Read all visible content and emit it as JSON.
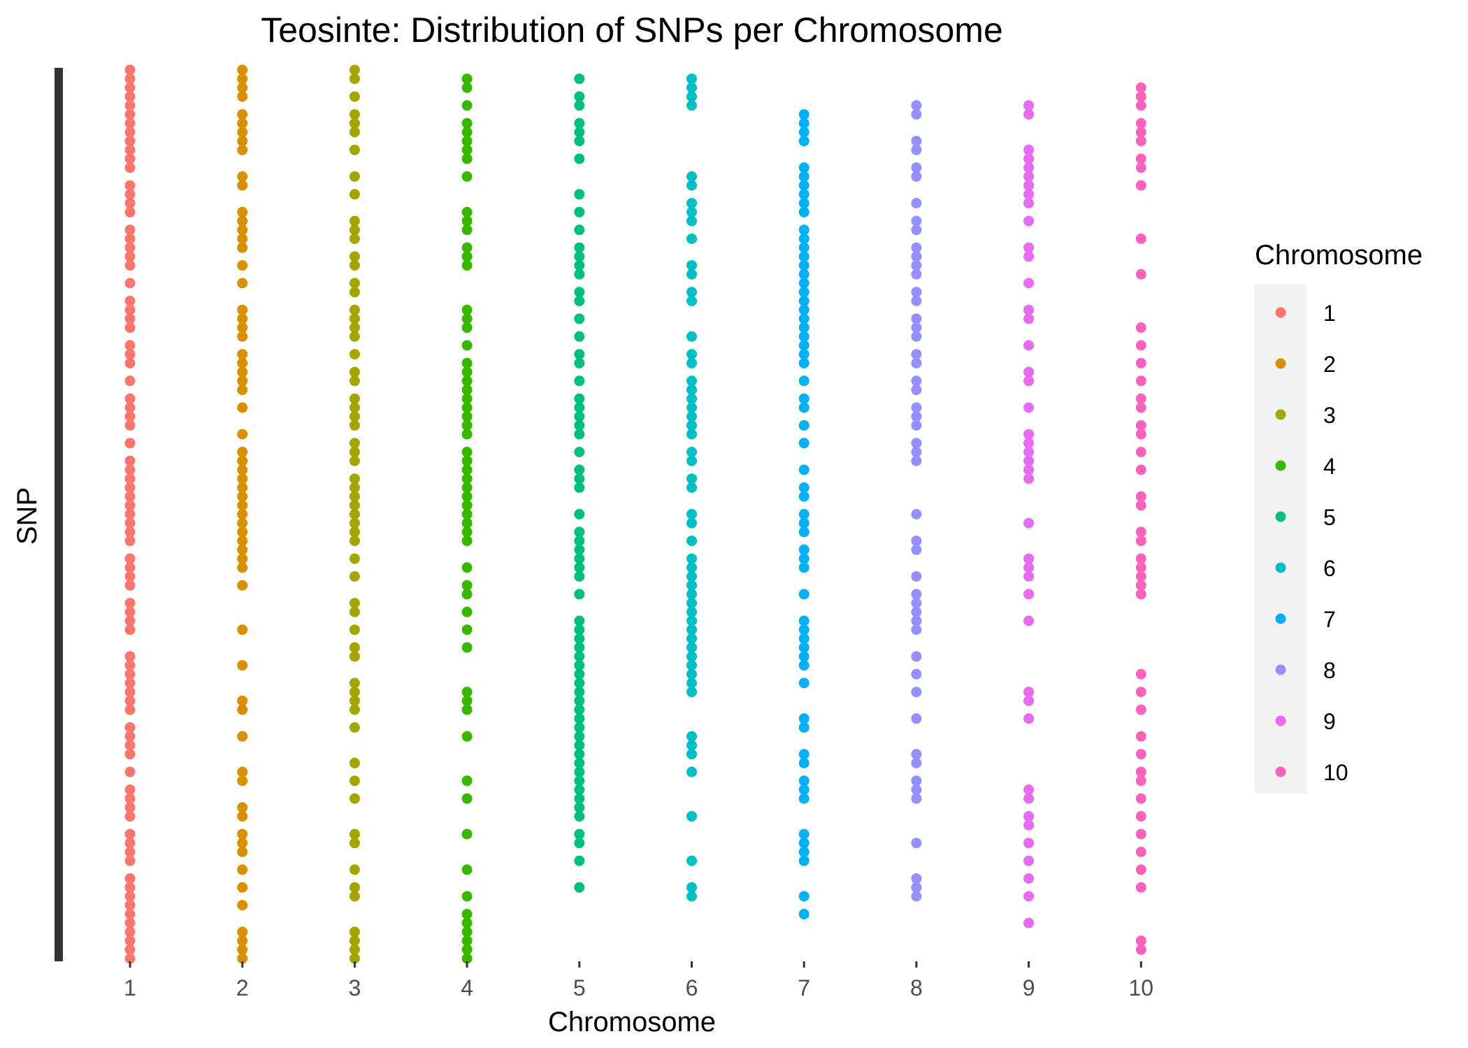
{
  "chart_data": {
    "type": "scatter",
    "title": "Teosinte: Distribution of SNPs per Chromosome",
    "xlabel": "Chromosome",
    "ylabel": "SNP",
    "categories": [
      "1",
      "2",
      "3",
      "4",
      "5",
      "6",
      "7",
      "8",
      "9",
      "10"
    ],
    "y_axis": "categorical (SNP identifiers), no tick labels shown",
    "grid": false,
    "legend": {
      "title": "Chromosome",
      "position": "right",
      "labels": [
        "1",
        "2",
        "3",
        "4",
        "5",
        "6",
        "7",
        "8",
        "9",
        "10"
      ]
    },
    "series": [
      {
        "category": "1",
        "color": "#F8766D",
        "y": [
          0.0,
          0.01,
          0.02,
          0.03,
          0.04,
          0.05,
          0.06,
          0.07,
          0.08,
          0.09,
          0.1,
          0.11,
          0.13,
          0.14,
          0.15,
          0.16,
          0.18,
          0.19,
          0.2,
          0.21,
          0.22,
          0.24,
          0.26,
          0.27,
          0.28,
          0.29,
          0.31,
          0.32,
          0.33,
          0.35,
          0.37,
          0.38,
          0.39,
          0.4,
          0.42,
          0.44,
          0.45,
          0.46,
          0.47,
          0.48,
          0.49,
          0.5,
          0.51,
          0.52,
          0.53,
          0.55,
          0.56,
          0.57,
          0.58,
          0.6,
          0.61,
          0.62,
          0.63,
          0.66,
          0.67,
          0.68,
          0.69,
          0.7,
          0.71,
          0.72,
          0.74,
          0.75,
          0.76,
          0.77,
          0.79,
          0.81,
          0.82,
          0.83,
          0.84,
          0.86,
          0.87,
          0.88,
          0.89,
          0.91,
          0.92,
          0.93,
          0.94,
          0.95,
          0.96,
          0.97,
          0.98,
          0.99,
          1.0
        ]
      },
      {
        "category": "2",
        "color": "#D89000",
        "y": [
          0.0,
          0.01,
          0.02,
          0.03,
          0.05,
          0.06,
          0.07,
          0.08,
          0.09,
          0.12,
          0.13,
          0.16,
          0.17,
          0.18,
          0.19,
          0.2,
          0.22,
          0.24,
          0.27,
          0.28,
          0.29,
          0.3,
          0.32,
          0.33,
          0.34,
          0.35,
          0.36,
          0.38,
          0.41,
          0.43,
          0.44,
          0.45,
          0.46,
          0.47,
          0.48,
          0.49,
          0.5,
          0.51,
          0.52,
          0.53,
          0.54,
          0.55,
          0.56,
          0.58,
          0.63,
          0.67,
          0.71,
          0.72,
          0.75,
          0.79,
          0.8,
          0.83,
          0.84,
          0.86,
          0.87,
          0.88,
          0.9,
          0.92,
          0.94,
          0.97,
          0.98,
          0.99,
          1.0
        ]
      },
      {
        "category": "3",
        "color": "#A3A500",
        "y": [
          0.0,
          0.01,
          0.03,
          0.05,
          0.06,
          0.07,
          0.09,
          0.12,
          0.14,
          0.17,
          0.18,
          0.19,
          0.21,
          0.22,
          0.24,
          0.25,
          0.27,
          0.28,
          0.29,
          0.3,
          0.32,
          0.34,
          0.35,
          0.37,
          0.38,
          0.39,
          0.4,
          0.42,
          0.43,
          0.44,
          0.46,
          0.47,
          0.48,
          0.49,
          0.5,
          0.51,
          0.52,
          0.53,
          0.55,
          0.57,
          0.6,
          0.61,
          0.63,
          0.65,
          0.66,
          0.69,
          0.7,
          0.71,
          0.72,
          0.74,
          0.78,
          0.8,
          0.82,
          0.86,
          0.87,
          0.9,
          0.92,
          0.93,
          0.97,
          0.98,
          0.99,
          1.0
        ]
      },
      {
        "category": "4",
        "color": "#39B600",
        "y": [
          0.01,
          0.02,
          0.04,
          0.06,
          0.07,
          0.08,
          0.09,
          0.1,
          0.12,
          0.16,
          0.17,
          0.18,
          0.2,
          0.21,
          0.22,
          0.27,
          0.28,
          0.29,
          0.31,
          0.33,
          0.34,
          0.35,
          0.36,
          0.37,
          0.38,
          0.39,
          0.4,
          0.41,
          0.43,
          0.44,
          0.45,
          0.46,
          0.47,
          0.48,
          0.49,
          0.5,
          0.51,
          0.52,
          0.53,
          0.56,
          0.58,
          0.59,
          0.61,
          0.63,
          0.65,
          0.7,
          0.71,
          0.72,
          0.75,
          0.8,
          0.82,
          0.86,
          0.9,
          0.93,
          0.95,
          0.96,
          0.97,
          0.98,
          0.99,
          1.0
        ]
      },
      {
        "category": "5",
        "color": "#00BF7D",
        "y": [
          0.01,
          0.03,
          0.04,
          0.06,
          0.07,
          0.08,
          0.1,
          0.14,
          0.16,
          0.18,
          0.2,
          0.21,
          0.22,
          0.23,
          0.25,
          0.26,
          0.28,
          0.3,
          0.32,
          0.33,
          0.35,
          0.37,
          0.38,
          0.39,
          0.4,
          0.41,
          0.43,
          0.45,
          0.46,
          0.47,
          0.5,
          0.52,
          0.53,
          0.54,
          0.55,
          0.56,
          0.57,
          0.59,
          0.62,
          0.63,
          0.64,
          0.65,
          0.66,
          0.67,
          0.68,
          0.69,
          0.7,
          0.71,
          0.72,
          0.73,
          0.74,
          0.75,
          0.76,
          0.77,
          0.78,
          0.79,
          0.8,
          0.81,
          0.82,
          0.83,
          0.84,
          0.86,
          0.87,
          0.89,
          0.92
        ]
      },
      {
        "category": "6",
        "color": "#00BFC4",
        "y": [
          0.01,
          0.02,
          0.03,
          0.04,
          0.12,
          0.13,
          0.15,
          0.16,
          0.17,
          0.19,
          0.22,
          0.23,
          0.25,
          0.26,
          0.3,
          0.32,
          0.33,
          0.35,
          0.36,
          0.37,
          0.38,
          0.39,
          0.4,
          0.41,
          0.43,
          0.44,
          0.46,
          0.47,
          0.5,
          0.51,
          0.53,
          0.55,
          0.56,
          0.57,
          0.58,
          0.59,
          0.6,
          0.61,
          0.62,
          0.63,
          0.64,
          0.65,
          0.66,
          0.67,
          0.68,
          0.69,
          0.7,
          0.75,
          0.76,
          0.77,
          0.79,
          0.84,
          0.89,
          0.92,
          0.93
        ]
      },
      {
        "category": "7",
        "color": "#00B0F6",
        "y": [
          0.05,
          0.06,
          0.07,
          0.08,
          0.11,
          0.12,
          0.13,
          0.14,
          0.15,
          0.16,
          0.18,
          0.19,
          0.2,
          0.21,
          0.22,
          0.23,
          0.24,
          0.25,
          0.26,
          0.27,
          0.28,
          0.29,
          0.3,
          0.31,
          0.32,
          0.33,
          0.35,
          0.37,
          0.38,
          0.4,
          0.42,
          0.45,
          0.47,
          0.48,
          0.5,
          0.51,
          0.52,
          0.54,
          0.55,
          0.56,
          0.59,
          0.62,
          0.63,
          0.64,
          0.65,
          0.66,
          0.67,
          0.69,
          0.73,
          0.74,
          0.77,
          0.78,
          0.8,
          0.81,
          0.82,
          0.86,
          0.87,
          0.88,
          0.89,
          0.93,
          0.95
        ]
      },
      {
        "category": "8",
        "color": "#9590FF",
        "y": [
          0.04,
          0.05,
          0.08,
          0.09,
          0.11,
          0.12,
          0.15,
          0.17,
          0.18,
          0.2,
          0.21,
          0.22,
          0.23,
          0.25,
          0.26,
          0.28,
          0.29,
          0.3,
          0.32,
          0.33,
          0.35,
          0.36,
          0.38,
          0.39,
          0.4,
          0.42,
          0.43,
          0.44,
          0.5,
          0.53,
          0.54,
          0.57,
          0.59,
          0.6,
          0.61,
          0.62,
          0.63,
          0.66,
          0.68,
          0.7,
          0.73,
          0.77,
          0.78,
          0.8,
          0.81,
          0.82,
          0.87,
          0.91,
          0.92,
          0.93
        ]
      },
      {
        "category": "9",
        "color": "#E76BF3",
        "y": [
          0.04,
          0.05,
          0.09,
          0.1,
          0.11,
          0.12,
          0.13,
          0.14,
          0.15,
          0.17,
          0.2,
          0.21,
          0.24,
          0.27,
          0.28,
          0.31,
          0.34,
          0.35,
          0.38,
          0.41,
          0.42,
          0.43,
          0.44,
          0.45,
          0.46,
          0.51,
          0.55,
          0.56,
          0.57,
          0.59,
          0.62,
          0.7,
          0.71,
          0.73,
          0.81,
          0.82,
          0.84,
          0.85,
          0.87,
          0.89,
          0.91,
          0.93,
          0.96
        ]
      },
      {
        "category": "10",
        "color": "#FF62BC",
        "y": [
          0.02,
          0.03,
          0.04,
          0.06,
          0.07,
          0.08,
          0.1,
          0.11,
          0.13,
          0.19,
          0.23,
          0.29,
          0.31,
          0.33,
          0.35,
          0.37,
          0.38,
          0.4,
          0.41,
          0.43,
          0.45,
          0.48,
          0.49,
          0.52,
          0.53,
          0.55,
          0.56,
          0.57,
          0.58,
          0.59,
          0.68,
          0.7,
          0.72,
          0.75,
          0.77,
          0.79,
          0.8,
          0.82,
          0.84,
          0.86,
          0.88,
          0.9,
          0.92,
          0.98,
          0.99
        ]
      }
    ]
  }
}
